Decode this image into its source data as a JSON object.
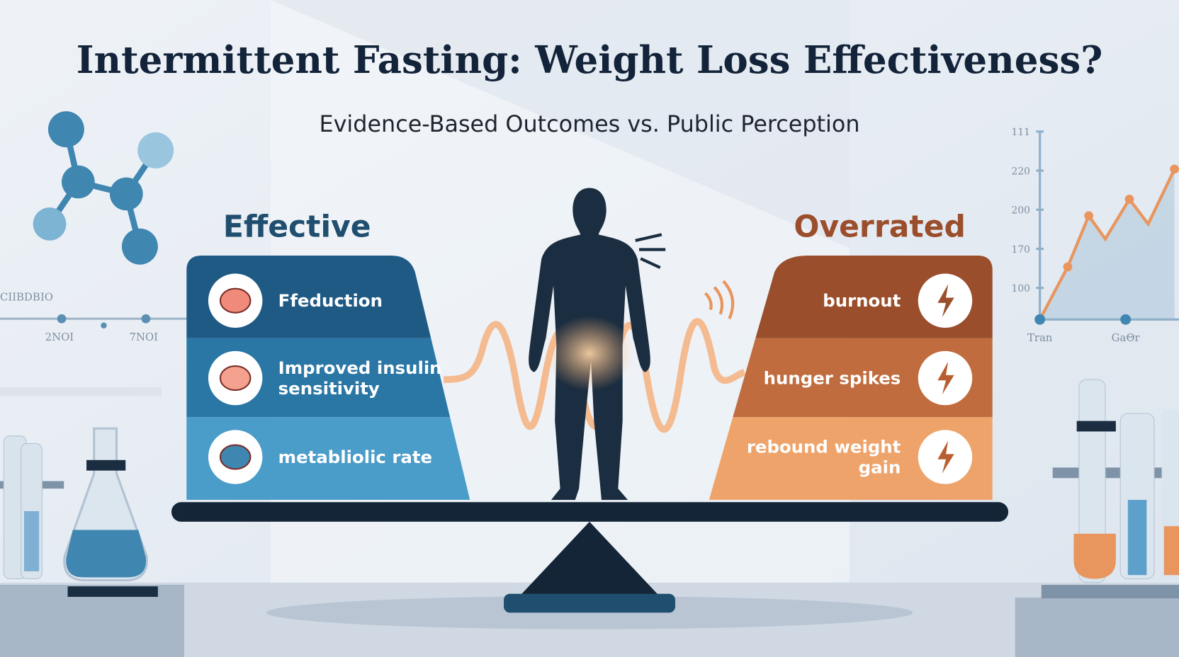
{
  "header": {
    "title": "Intermittent Fasting: Weight Loss Effectiveness?",
    "subtitle": "Evidence-Based Outcomes vs. Public Perception"
  },
  "left": {
    "heading": "Effective",
    "items": [
      {
        "lines": [
          "Ffeduction"
        ]
      },
      {
        "lines": [
          "Improved insulin",
          "sensitivity"
        ]
      },
      {
        "lines": [
          "metabliolic rate"
        ]
      }
    ]
  },
  "right": {
    "heading": "Overrated",
    "items": [
      {
        "lines": [
          "burnout"
        ]
      },
      {
        "lines": [
          "hunger spikes"
        ]
      },
      {
        "lines": [
          "rebound weight",
          "gain"
        ]
      }
    ]
  },
  "background": {
    "right_chart_y_labels": [
      "111",
      "220",
      "200",
      "170",
      "100"
    ],
    "right_chart_x_labels": [
      "Tran",
      "GaΘr"
    ],
    "left_chart_labels": [
      "CIIBDBIO",
      "2NOI",
      "7NOI"
    ]
  }
}
